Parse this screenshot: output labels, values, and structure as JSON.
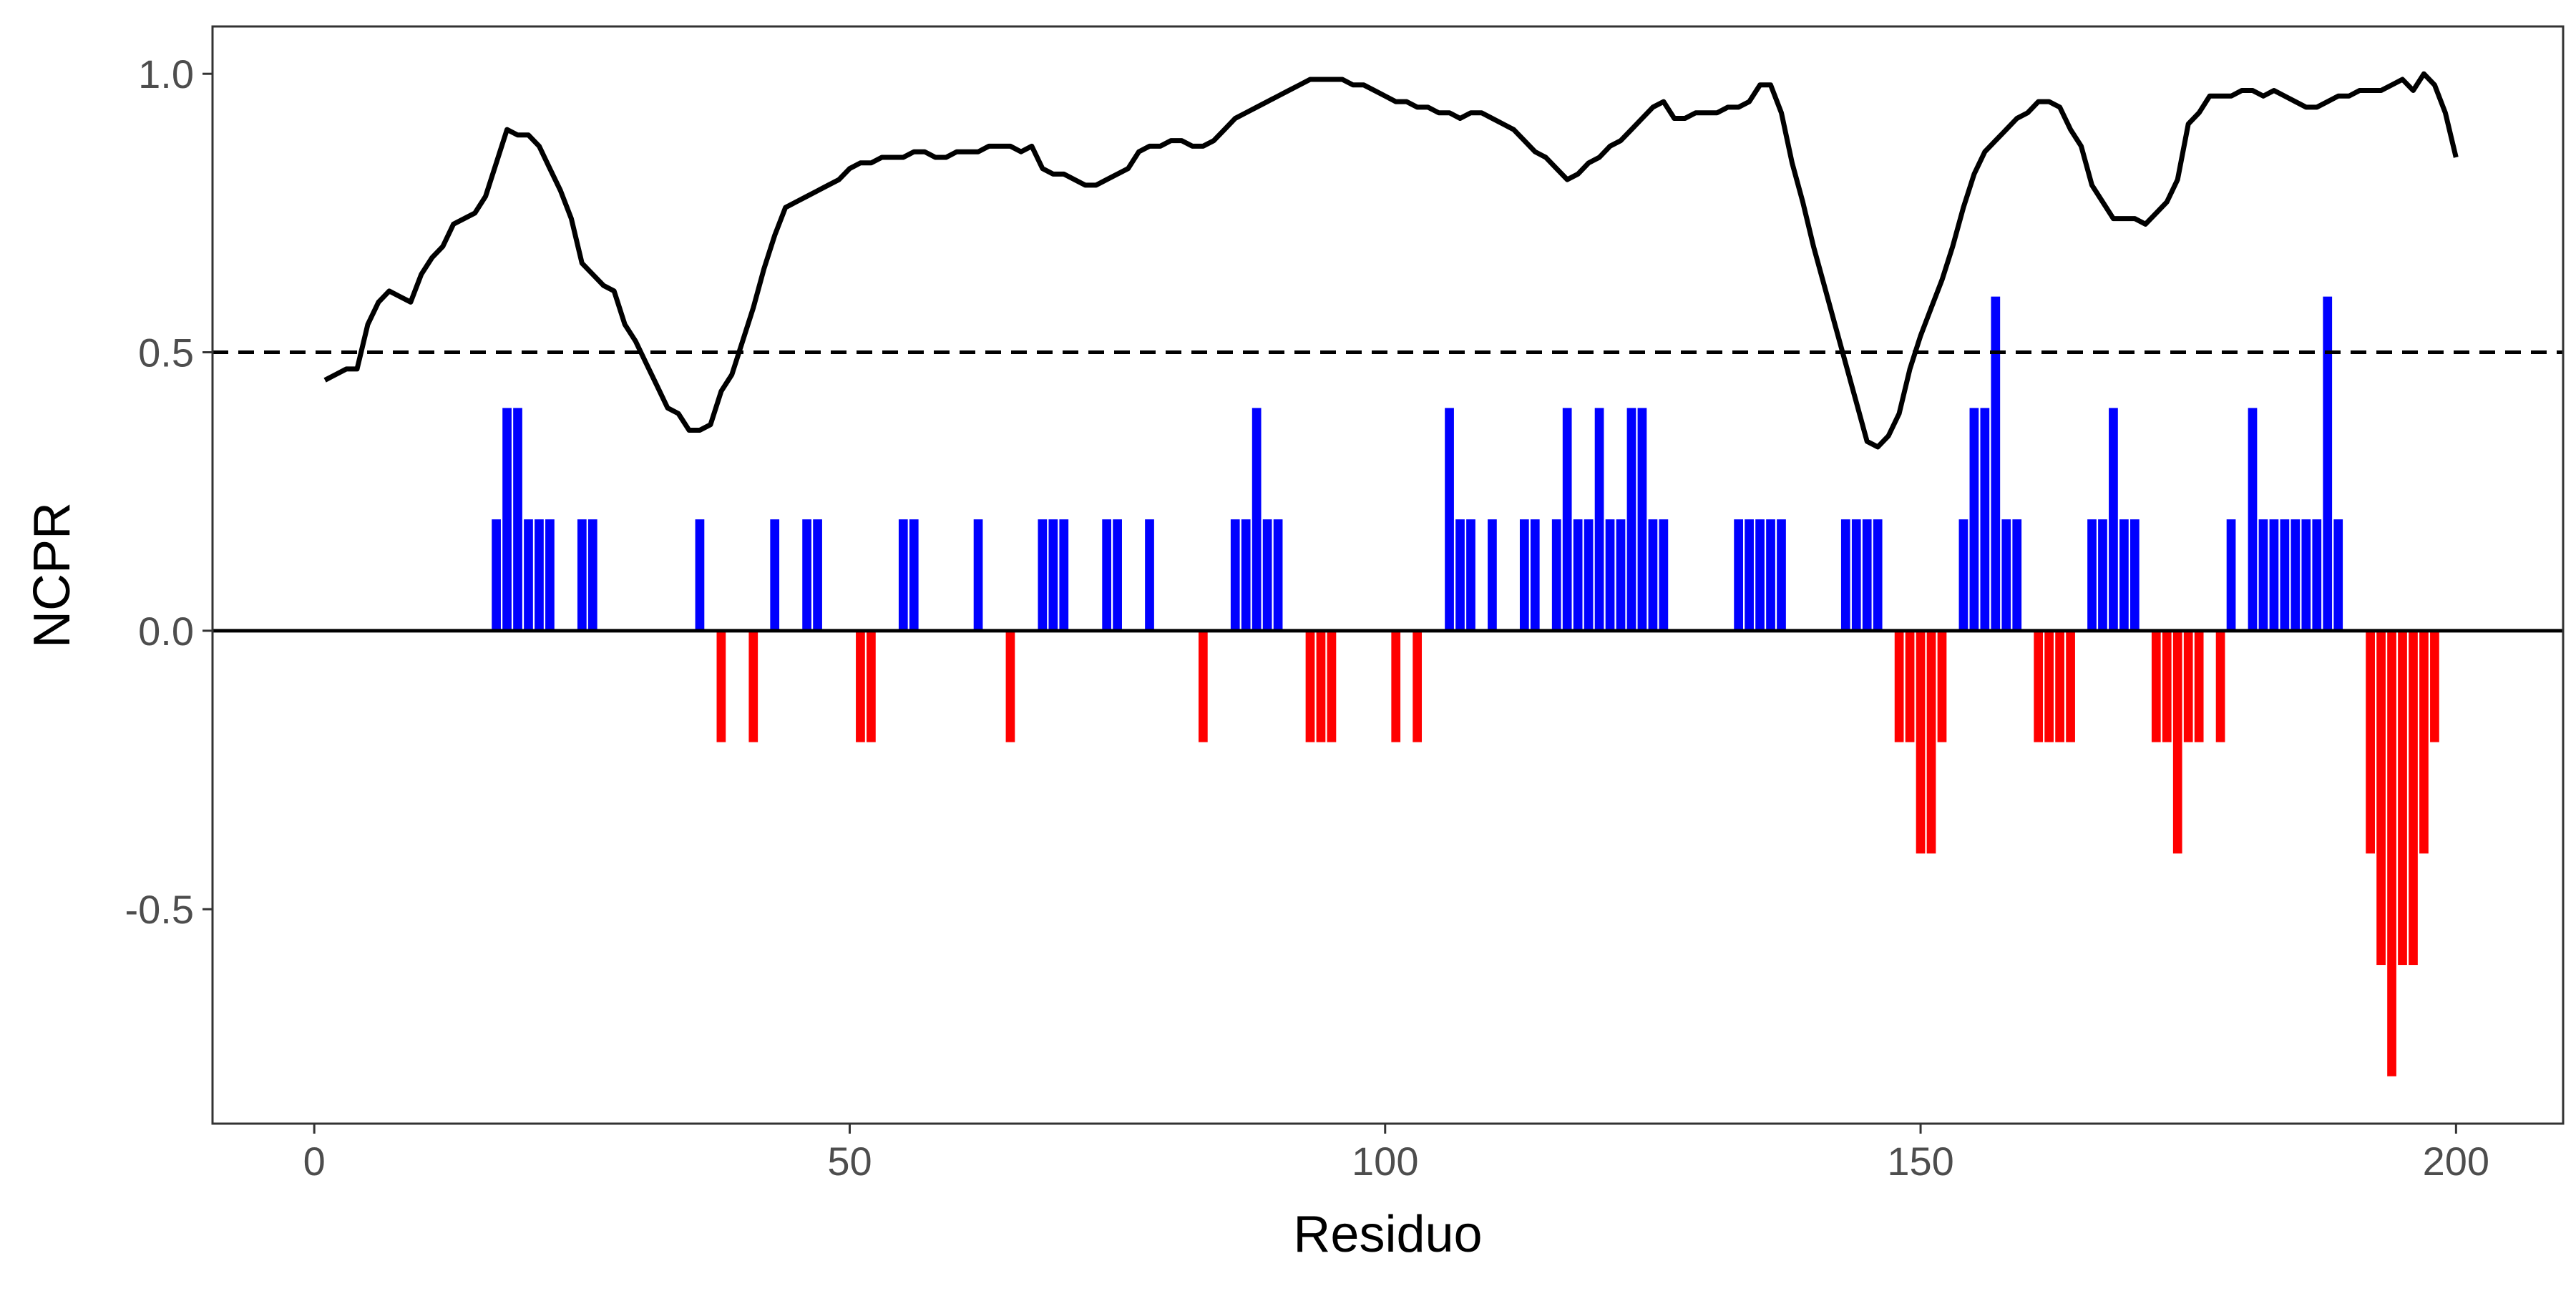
{
  "chart_data": {
    "type": "bar",
    "xlabel": "Residuo",
    "ylabel": "NCPR",
    "xlim": [
      -9.5,
      210
    ],
    "ylim": [
      -0.885,
      1.085
    ],
    "x_ticks": [
      0,
      50,
      100,
      150,
      200
    ],
    "y_ticks": [
      -0.5,
      0.0,
      0.5,
      1.0
    ],
    "x_tick_labels": [
      "0",
      "50",
      "100",
      "150",
      "200"
    ],
    "y_tick_labels": [
      "-0.5",
      "0.0",
      "0.5",
      "1.0"
    ],
    "grid": false,
    "threshold": 0.5,
    "bar_width": 0.85,
    "bars": [
      {
        "x": 17,
        "y": 0.2
      },
      {
        "x": 18,
        "y": 0.4
      },
      {
        "x": 19,
        "y": 0.4
      },
      {
        "x": 20,
        "y": 0.2
      },
      {
        "x": 21,
        "y": 0.2
      },
      {
        "x": 22,
        "y": 0.2
      },
      {
        "x": 25,
        "y": 0.2
      },
      {
        "x": 26,
        "y": 0.2
      },
      {
        "x": 36,
        "y": 0.2
      },
      {
        "x": 38,
        "y": -0.2
      },
      {
        "x": 41,
        "y": -0.2
      },
      {
        "x": 43,
        "y": 0.2
      },
      {
        "x": 46,
        "y": 0.2
      },
      {
        "x": 47,
        "y": 0.2
      },
      {
        "x": 51,
        "y": -0.2
      },
      {
        "x": 52,
        "y": -0.2
      },
      {
        "x": 55,
        "y": 0.2
      },
      {
        "x": 56,
        "y": 0.2
      },
      {
        "x": 62,
        "y": 0.2
      },
      {
        "x": 65,
        "y": -0.2
      },
      {
        "x": 68,
        "y": 0.2
      },
      {
        "x": 69,
        "y": 0.2
      },
      {
        "x": 70,
        "y": 0.2
      },
      {
        "x": 74,
        "y": 0.2
      },
      {
        "x": 75,
        "y": 0.2
      },
      {
        "x": 78,
        "y": 0.2
      },
      {
        "x": 83,
        "y": -0.2
      },
      {
        "x": 86,
        "y": 0.2
      },
      {
        "x": 87,
        "y": 0.2
      },
      {
        "x": 88,
        "y": 0.4
      },
      {
        "x": 89,
        "y": 0.2
      },
      {
        "x": 90,
        "y": 0.2
      },
      {
        "x": 93,
        "y": -0.2
      },
      {
        "x": 94,
        "y": -0.2
      },
      {
        "x": 95,
        "y": -0.2
      },
      {
        "x": 101,
        "y": -0.2
      },
      {
        "x": 103,
        "y": -0.2
      },
      {
        "x": 106,
        "y": 0.4
      },
      {
        "x": 107,
        "y": 0.2
      },
      {
        "x": 108,
        "y": 0.2
      },
      {
        "x": 110,
        "y": 0.2
      },
      {
        "x": 113,
        "y": 0.2
      },
      {
        "x": 114,
        "y": 0.2
      },
      {
        "x": 116,
        "y": 0.2
      },
      {
        "x": 117,
        "y": 0.4
      },
      {
        "x": 118,
        "y": 0.2
      },
      {
        "x": 119,
        "y": 0.2
      },
      {
        "x": 120,
        "y": 0.4
      },
      {
        "x": 121,
        "y": 0.2
      },
      {
        "x": 122,
        "y": 0.2
      },
      {
        "x": 123,
        "y": 0.4
      },
      {
        "x": 124,
        "y": 0.4
      },
      {
        "x": 125,
        "y": 0.2
      },
      {
        "x": 126,
        "y": 0.2
      },
      {
        "x": 133,
        "y": 0.2
      },
      {
        "x": 134,
        "y": 0.2
      },
      {
        "x": 135,
        "y": 0.2
      },
      {
        "x": 136,
        "y": 0.2
      },
      {
        "x": 137,
        "y": 0.2
      },
      {
        "x": 143,
        "y": 0.2
      },
      {
        "x": 144,
        "y": 0.2
      },
      {
        "x": 145,
        "y": 0.2
      },
      {
        "x": 146,
        "y": 0.2
      },
      {
        "x": 148,
        "y": -0.2
      },
      {
        "x": 149,
        "y": -0.2
      },
      {
        "x": 150,
        "y": -0.4
      },
      {
        "x": 151,
        "y": -0.4
      },
      {
        "x": 152,
        "y": -0.2
      },
      {
        "x": 154,
        "y": 0.2
      },
      {
        "x": 155,
        "y": 0.4
      },
      {
        "x": 156,
        "y": 0.4
      },
      {
        "x": 157,
        "y": 0.6
      },
      {
        "x": 158,
        "y": 0.2
      },
      {
        "x": 159,
        "y": 0.2
      },
      {
        "x": 161,
        "y": -0.2
      },
      {
        "x": 162,
        "y": -0.2
      },
      {
        "x": 163,
        "y": -0.2
      },
      {
        "x": 164,
        "y": -0.2
      },
      {
        "x": 166,
        "y": 0.2
      },
      {
        "x": 167,
        "y": 0.2
      },
      {
        "x": 168,
        "y": 0.4
      },
      {
        "x": 169,
        "y": 0.2
      },
      {
        "x": 170,
        "y": 0.2
      },
      {
        "x": 172,
        "y": -0.2
      },
      {
        "x": 173,
        "y": -0.2
      },
      {
        "x": 174,
        "y": -0.4
      },
      {
        "x": 175,
        "y": -0.2
      },
      {
        "x": 176,
        "y": -0.2
      },
      {
        "x": 178,
        "y": -0.2
      },
      {
        "x": 179,
        "y": 0.2
      },
      {
        "x": 181,
        "y": 0.4
      },
      {
        "x": 182,
        "y": 0.2
      },
      {
        "x": 183,
        "y": 0.2
      },
      {
        "x": 184,
        "y": 0.2
      },
      {
        "x": 185,
        "y": 0.2
      },
      {
        "x": 186,
        "y": 0.2
      },
      {
        "x": 187,
        "y": 0.2
      },
      {
        "x": 188,
        "y": 0.6
      },
      {
        "x": 189,
        "y": 0.2
      },
      {
        "x": 192,
        "y": -0.4
      },
      {
        "x": 193,
        "y": -0.6
      },
      {
        "x": 194,
        "y": -0.8
      },
      {
        "x": 195,
        "y": -0.6
      },
      {
        "x": 196,
        "y": -0.6
      },
      {
        "x": 197,
        "y": -0.4
      },
      {
        "x": 198,
        "y": -0.2
      }
    ],
    "line": [
      [
        1,
        0.45
      ],
      [
        2,
        0.46
      ],
      [
        3,
        0.47
      ],
      [
        4,
        0.47
      ],
      [
        5,
        0.55
      ],
      [
        6,
        0.59
      ],
      [
        7,
        0.61
      ],
      [
        8,
        0.6
      ],
      [
        9,
        0.59
      ],
      [
        10,
        0.64
      ],
      [
        11,
        0.67
      ],
      [
        12,
        0.69
      ],
      [
        13,
        0.73
      ],
      [
        14,
        0.74
      ],
      [
        15,
        0.75
      ],
      [
        16,
        0.78
      ],
      [
        17,
        0.84
      ],
      [
        18,
        0.9
      ],
      [
        19,
        0.89
      ],
      [
        20,
        0.89
      ],
      [
        21,
        0.87
      ],
      [
        22,
        0.83
      ],
      [
        23,
        0.79
      ],
      [
        24,
        0.74
      ],
      [
        25,
        0.66
      ],
      [
        26,
        0.64
      ],
      [
        27,
        0.62
      ],
      [
        28,
        0.61
      ],
      [
        29,
        0.55
      ],
      [
        30,
        0.52
      ],
      [
        31,
        0.48
      ],
      [
        32,
        0.44
      ],
      [
        33,
        0.4
      ],
      [
        34,
        0.39
      ],
      [
        35,
        0.36
      ],
      [
        36,
        0.36
      ],
      [
        37,
        0.37
      ],
      [
        38,
        0.43
      ],
      [
        39,
        0.46
      ],
      [
        40,
        0.52
      ],
      [
        41,
        0.58
      ],
      [
        42,
        0.65
      ],
      [
        43,
        0.71
      ],
      [
        44,
        0.76
      ],
      [
        45,
        0.77
      ],
      [
        46,
        0.78
      ],
      [
        47,
        0.79
      ],
      [
        48,
        0.8
      ],
      [
        49,
        0.81
      ],
      [
        50,
        0.83
      ],
      [
        51,
        0.84
      ],
      [
        52,
        0.84
      ],
      [
        53,
        0.85
      ],
      [
        54,
        0.85
      ],
      [
        55,
        0.85
      ],
      [
        56,
        0.86
      ],
      [
        57,
        0.86
      ],
      [
        58,
        0.85
      ],
      [
        59,
        0.85
      ],
      [
        60,
        0.86
      ],
      [
        61,
        0.86
      ],
      [
        62,
        0.86
      ],
      [
        63,
        0.87
      ],
      [
        64,
        0.87
      ],
      [
        65,
        0.87
      ],
      [
        66,
        0.86
      ],
      [
        67,
        0.87
      ],
      [
        68,
        0.83
      ],
      [
        69,
        0.82
      ],
      [
        70,
        0.82
      ],
      [
        71,
        0.81
      ],
      [
        72,
        0.8
      ],
      [
        73,
        0.8
      ],
      [
        74,
        0.81
      ],
      [
        75,
        0.82
      ],
      [
        76,
        0.83
      ],
      [
        77,
        0.86
      ],
      [
        78,
        0.87
      ],
      [
        79,
        0.87
      ],
      [
        80,
        0.88
      ],
      [
        81,
        0.88
      ],
      [
        82,
        0.87
      ],
      [
        83,
        0.87
      ],
      [
        84,
        0.88
      ],
      [
        85,
        0.9
      ],
      [
        86,
        0.92
      ],
      [
        87,
        0.93
      ],
      [
        88,
        0.94
      ],
      [
        89,
        0.95
      ],
      [
        90,
        0.96
      ],
      [
        91,
        0.97
      ],
      [
        92,
        0.98
      ],
      [
        93,
        0.99
      ],
      [
        94,
        0.99
      ],
      [
        95,
        0.99
      ],
      [
        96,
        0.99
      ],
      [
        97,
        0.98
      ],
      [
        98,
        0.98
      ],
      [
        99,
        0.97
      ],
      [
        100,
        0.96
      ],
      [
        101,
        0.95
      ],
      [
        102,
        0.95
      ],
      [
        103,
        0.94
      ],
      [
        104,
        0.94
      ],
      [
        105,
        0.93
      ],
      [
        106,
        0.93
      ],
      [
        107,
        0.92
      ],
      [
        108,
        0.93
      ],
      [
        109,
        0.93
      ],
      [
        110,
        0.92
      ],
      [
        111,
        0.91
      ],
      [
        112,
        0.9
      ],
      [
        113,
        0.88
      ],
      [
        114,
        0.86
      ],
      [
        115,
        0.85
      ],
      [
        116,
        0.83
      ],
      [
        117,
        0.81
      ],
      [
        118,
        0.82
      ],
      [
        119,
        0.84
      ],
      [
        120,
        0.85
      ],
      [
        121,
        0.87
      ],
      [
        122,
        0.88
      ],
      [
        123,
        0.9
      ],
      [
        124,
        0.92
      ],
      [
        125,
        0.94
      ],
      [
        126,
        0.95
      ],
      [
        127,
        0.92
      ],
      [
        128,
        0.92
      ],
      [
        129,
        0.93
      ],
      [
        130,
        0.93
      ],
      [
        131,
        0.93
      ],
      [
        132,
        0.94
      ],
      [
        133,
        0.94
      ],
      [
        134,
        0.95
      ],
      [
        135,
        0.98
      ],
      [
        136,
        0.98
      ],
      [
        137,
        0.93
      ],
      [
        138,
        0.84
      ],
      [
        139,
        0.77
      ],
      [
        140,
        0.69
      ],
      [
        141,
        0.62
      ],
      [
        142,
        0.55
      ],
      [
        143,
        0.48
      ],
      [
        144,
        0.41
      ],
      [
        145,
        0.34
      ],
      [
        146,
        0.33
      ],
      [
        147,
        0.35
      ],
      [
        148,
        0.39
      ],
      [
        149,
        0.47
      ],
      [
        150,
        0.53
      ],
      [
        151,
        0.58
      ],
      [
        152,
        0.63
      ],
      [
        153,
        0.69
      ],
      [
        154,
        0.76
      ],
      [
        155,
        0.82
      ],
      [
        156,
        0.86
      ],
      [
        157,
        0.88
      ],
      [
        158,
        0.9
      ],
      [
        159,
        0.92
      ],
      [
        160,
        0.93
      ],
      [
        161,
        0.95
      ],
      [
        162,
        0.95
      ],
      [
        163,
        0.94
      ],
      [
        164,
        0.9
      ],
      [
        165,
        0.87
      ],
      [
        166,
        0.8
      ],
      [
        167,
        0.77
      ],
      [
        168,
        0.74
      ],
      [
        169,
        0.74
      ],
      [
        170,
        0.74
      ],
      [
        171,
        0.73
      ],
      [
        172,
        0.75
      ],
      [
        173,
        0.77
      ],
      [
        174,
        0.81
      ],
      [
        175,
        0.91
      ],
      [
        176,
        0.93
      ],
      [
        177,
        0.96
      ],
      [
        178,
        0.96
      ],
      [
        179,
        0.96
      ],
      [
        180,
        0.97
      ],
      [
        181,
        0.97
      ],
      [
        182,
        0.96
      ],
      [
        183,
        0.97
      ],
      [
        184,
        0.96
      ],
      [
        185,
        0.95
      ],
      [
        186,
        0.94
      ],
      [
        187,
        0.94
      ],
      [
        188,
        0.95
      ],
      [
        189,
        0.96
      ],
      [
        190,
        0.96
      ],
      [
        191,
        0.97
      ],
      [
        192,
        0.97
      ],
      [
        193,
        0.97
      ],
      [
        194,
        0.98
      ],
      [
        195,
        0.99
      ],
      [
        196,
        0.97
      ],
      [
        197,
        1.0
      ],
      [
        198,
        0.98
      ],
      [
        199,
        0.93
      ],
      [
        200,
        0.85
      ]
    ],
    "colors": {
      "positive": "#0000ff",
      "negative": "#ff0000",
      "line": "#000000",
      "threshold": "#000000",
      "zero_line": "#000000",
      "panel_border": "#333333",
      "tick_label": "#4d4d4d",
      "axis_title": "#000000",
      "background": "#ffffff"
    }
  }
}
